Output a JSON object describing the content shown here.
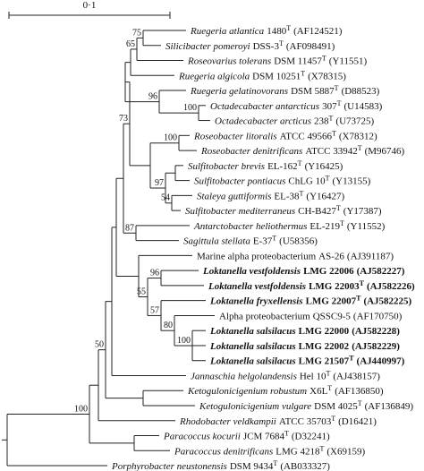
{
  "scale_bar": "0·1",
  "taxa": [
    {
      "name": "Ruegeria atlantica",
      "strain": "1480",
      "sup": "T",
      "accession": "(AF124521)"
    },
    {
      "name": "Silicibacter pomeroyi",
      "strain": "DSS-3",
      "sup": "T",
      "accession": "(AF098491)"
    },
    {
      "name": "Roseovarius tolerans",
      "strain": "DSM 11457",
      "sup": "T",
      "accession": "(Y11551)"
    },
    {
      "name": "Ruegeria algicola",
      "strain": "DSM 10251",
      "sup": "T",
      "accession": "(X78315)"
    },
    {
      "name": "Ruegeria gelatinovorans",
      "strain": "DSM 5887",
      "sup": "T",
      "accession": "(D88523)"
    },
    {
      "name": "Octadecabacter antarcticus",
      "strain": "307",
      "sup": "T",
      "accession": "(U14583)"
    },
    {
      "name": "Octadecabacter arcticus",
      "strain": "238",
      "sup": "T",
      "accession": "(U73725)"
    },
    {
      "name": "Roseobacter litoralis",
      "strain": "ATCC 49566",
      "sup": "T",
      "accession": "(X78312)"
    },
    {
      "name": "Roseobacter denitrificans",
      "strain": "ATCC 33942",
      "sup": "T",
      "accession": "(M96746)"
    },
    {
      "name": "Sulfitobacter brevis",
      "strain": "EL-162",
      "sup": "T",
      "accession": "(Y16425)"
    },
    {
      "name": "Sulfitobacter pontiacus",
      "strain": "ChLG 10",
      "sup": "T",
      "accession": "(Y13155)"
    },
    {
      "name": "Staleya guttiformis",
      "strain": "EL-38",
      "sup": "T",
      "accession": "(Y16427)"
    },
    {
      "name": "Sulfitobacter mediterraneus",
      "strain": "CH-B427",
      "sup": "T",
      "accession": "(Y17387)"
    },
    {
      "name": "Antarctobacter heliothermus",
      "strain": "EL-219",
      "sup": "T",
      "accession": "(Y11552)"
    },
    {
      "name": "Sagittula stellata",
      "strain": "E-37",
      "sup": "T",
      "accession": "(U58356)"
    },
    {
      "name": "Marine alpha proteobacterium",
      "italic": false,
      "strain": "AS-26",
      "accession": "(AJ391187)"
    },
    {
      "name": "Loktanella vestfoldensis",
      "bold": true,
      "strain": "LMG 22006",
      "accession": "(AJ582227)"
    },
    {
      "name": "Loktanella vestfoldensis",
      "bold": true,
      "strain": "LMG 22003",
      "sup": "T",
      "accession": "(AJ582226)"
    },
    {
      "name": "Loktanella fryxellensis",
      "bold": true,
      "strain": "LMG 22007",
      "sup": "T",
      "accession": "(AJ582225)"
    },
    {
      "name": "Alpha proteobacterium",
      "italic": false,
      "strain": "QSSC9-5",
      "accession": "(AF170750)"
    },
    {
      "name": "Loktanella salsilacus",
      "bold": true,
      "strain": "LMG 22000",
      "accession": "(AJ582228)"
    },
    {
      "name": "Loktanella salsilacus",
      "bold": true,
      "strain": "LMG 22002",
      "accession": "(AJ582229)"
    },
    {
      "name": "Loktanella salsilacus",
      "bold": true,
      "strain": "LMG 21507",
      "sup": "T",
      "accession": "(AJ440997)"
    },
    {
      "name": "Jannaschia helgolandensis",
      "strain": "Hel 10",
      "sup": "T",
      "accession": "(AJ438157)"
    },
    {
      "name": "Ketogulonicigenium robustum",
      "strain": "X6L",
      "sup": "T",
      "accession": "(AF136850)"
    },
    {
      "name": "Ketogulonicigenium vulgare",
      "strain": "DSM 4025",
      "sup": "T",
      "accession": "(AF136849)"
    },
    {
      "name": "Rhodobacter veldkampii",
      "strain": "ATCC 35703",
      "sup": "T",
      "accession": "(D16421)"
    },
    {
      "name": "Paracoccus kocurii",
      "strain": "JCM 7684",
      "sup": "T",
      "accession": "(D32241)"
    },
    {
      "name": "Paracoccus denitrificans",
      "strain": "LMG 4218",
      "sup": "T",
      "accession": "(X69159)"
    },
    {
      "name": "Porphyrobacter neustonensis",
      "strain": "DSM 9434",
      "sup": "T",
      "accession": "(AB033327)"
    }
  ],
  "bootstrap": [
    75,
    65,
    96,
    100,
    100,
    97,
    54,
    73,
    87,
    96,
    55,
    100,
    80,
    57,
    50,
    100
  ]
}
